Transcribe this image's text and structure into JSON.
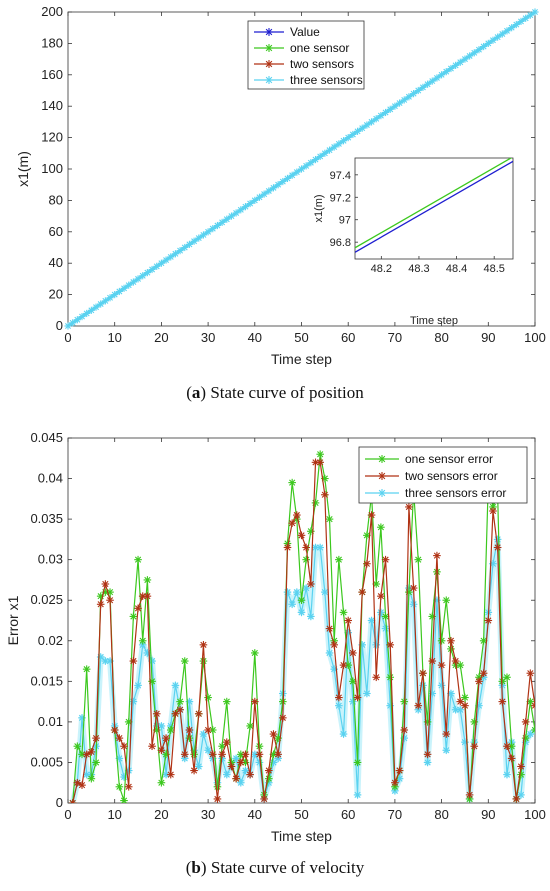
{
  "captions": {
    "a": {
      "letter": "a",
      "text": "State curve of position"
    },
    "b": {
      "letter": "b",
      "text": "State curve of velocity"
    }
  },
  "chart_data": [
    {
      "type": "line",
      "xlabel": "Time step",
      "ylabel": "x1(m)",
      "xlim": [
        0,
        100
      ],
      "ylim": [
        0,
        200
      ],
      "xticks": [
        0,
        10,
        20,
        30,
        40,
        50,
        60,
        70,
        80,
        90,
        100
      ],
      "yticks": [
        0,
        20,
        40,
        60,
        80,
        100,
        120,
        140,
        160,
        180,
        200
      ],
      "legend_position": "top-center",
      "series": [
        {
          "name": "Value",
          "color": "#1f1fd0",
          "marker": "*",
          "x": [
            0,
            100
          ],
          "y": [
            0,
            200
          ]
        },
        {
          "name": "one sensor",
          "color": "#3cc81e",
          "marker": "*",
          "x": [
            0,
            100
          ],
          "y": [
            0,
            200
          ]
        },
        {
          "name": "two sensors",
          "color": "#b03214",
          "marker": "*",
          "x": [
            0,
            100
          ],
          "y": [
            0,
            200
          ]
        },
        {
          "name": "three sensors",
          "color": "#5ad2f0",
          "marker": "*",
          "x": [
            0,
            100
          ],
          "y": [
            0,
            200
          ]
        }
      ],
      "inset": {
        "xlabel": "Time step",
        "ylabel": "x1(m)",
        "xlim": [
          48.13,
          48.55
        ],
        "ylim": [
          96.65,
          97.55
        ],
        "xticks": [
          48.2,
          48.3,
          48.4,
          48.5
        ],
        "yticks": [
          96.8,
          97,
          97.2,
          97.4
        ],
        "ytick_labels": [
          "96.8",
          "97",
          "97.2",
          "97.4"
        ],
        "series": [
          {
            "color": "#1f1fd0",
            "x": [
              48.13,
              48.55
            ],
            "y": [
              96.71,
              97.52
            ]
          },
          {
            "color": "#3cc81e",
            "x": [
              48.13,
              48.55
            ],
            "y": [
              96.75,
              97.56
            ]
          }
        ]
      }
    },
    {
      "type": "line",
      "xlabel": "Time step",
      "ylabel": "Error x1",
      "xlim": [
        0,
        100
      ],
      "ylim": [
        0,
        0.045
      ],
      "xticks": [
        0,
        10,
        20,
        30,
        40,
        50,
        60,
        70,
        80,
        90,
        100
      ],
      "yticks": [
        0,
        0.005,
        0.01,
        0.015,
        0.02,
        0.025,
        0.03,
        0.035,
        0.04,
        0.045
      ],
      "ytick_labels": [
        "0",
        "0.005",
        "0.01",
        "0.015",
        "0.02",
        "0.025",
        "0.03",
        "0.035",
        "0.04",
        "0.045"
      ],
      "legend_position": "top-right",
      "x": [
        1,
        2,
        3,
        4,
        5,
        6,
        7,
        8,
        9,
        10,
        11,
        12,
        13,
        14,
        15,
        16,
        17,
        18,
        19,
        20,
        21,
        22,
        23,
        24,
        25,
        26,
        27,
        28,
        29,
        30,
        31,
        32,
        33,
        34,
        35,
        36,
        37,
        38,
        39,
        40,
        41,
        42,
        43,
        44,
        45,
        46,
        47,
        48,
        49,
        50,
        51,
        52,
        53,
        54,
        55,
        56,
        57,
        58,
        59,
        60,
        61,
        62,
        63,
        64,
        65,
        66,
        67,
        68,
        69,
        70,
        71,
        72,
        73,
        74,
        75,
        76,
        77,
        78,
        79,
        80,
        81,
        82,
        83,
        84,
        85,
        86,
        87,
        88,
        89,
        90,
        91,
        92,
        93,
        94,
        95,
        96,
        97,
        98,
        99,
        100
      ],
      "series": [
        {
          "name": "one sensor error",
          "color": "#3cc81e",
          "values": [
            0,
            0.007,
            0.006,
            0.0165,
            0.003,
            0.005,
            0.0255,
            0.026,
            0.026,
            0.009,
            0.002,
            0.0003,
            0.01,
            0.023,
            0.03,
            0.02,
            0.0275,
            0.015,
            0.009,
            0.0025,
            0.006,
            0.009,
            0.011,
            0.0125,
            0.0175,
            0.008,
            0.006,
            0.011,
            0.0175,
            0.013,
            0.009,
            0.002,
            0.007,
            0.0125,
            0.005,
            0.003,
            0.006,
            0.005,
            0.0095,
            0.0185,
            0.007,
            0.001,
            0.003,
            0.006,
            0.008,
            0.0125,
            0.032,
            0.0395,
            0.035,
            0.025,
            0.03,
            0.0335,
            0.037,
            0.043,
            0.04,
            0.035,
            0.02,
            0.03,
            0.0235,
            0.017,
            0.015,
            0.005,
            0.026,
            0.033,
            0.038,
            0.027,
            0.034,
            0.023,
            0.0155,
            0.002,
            0.004,
            0.0125,
            0.026,
            0.0385,
            0.03,
            0.016,
            0.01,
            0.023,
            0.0285,
            0.02,
            0.025,
            0.019,
            0.017,
            0.017,
            0.013,
            0.0005,
            0.01,
            0.0155,
            0.02,
            0.0395,
            0.0365,
            0.038,
            0.015,
            0.0155,
            0.007,
            0.0005,
            0.0035,
            0.008,
            0.0125,
            0.009
          ]
        },
        {
          "name": "two sensors error",
          "color": "#b03214",
          "values": [
            0,
            0.0025,
            0.0022,
            0.006,
            0.0063,
            0.008,
            0.0245,
            0.027,
            0.025,
            0.009,
            0.008,
            0.007,
            0.002,
            0.0175,
            0.024,
            0.0255,
            0.0255,
            0.007,
            0.011,
            0.0065,
            0.008,
            0.0035,
            0.011,
            0.0115,
            0.006,
            0.009,
            0.004,
            0.011,
            0.0195,
            0.009,
            0.006,
            0.0005,
            0.006,
            0.0075,
            0.0045,
            0.003,
            0.005,
            0.006,
            0.0035,
            0.0125,
            0.006,
            0.0005,
            0.004,
            0.0085,
            0.006,
            0.0105,
            0.0315,
            0.0345,
            0.0355,
            0.033,
            0.0315,
            0.027,
            0.042,
            0.042,
            0.038,
            0.0215,
            0.0195,
            0.013,
            0.017,
            0.0225,
            0.0185,
            0.013,
            0.026,
            0.0295,
            0.0355,
            0.0155,
            0.0255,
            0.03,
            0.0195,
            0.0025,
            0.004,
            0.009,
            0.0365,
            0.0265,
            0.012,
            0.016,
            0.006,
            0.0175,
            0.0305,
            0.017,
            0.0085,
            0.02,
            0.0175,
            0.0125,
            0.012,
            0.001,
            0.007,
            0.015,
            0.016,
            0.0225,
            0.036,
            0.0315,
            0.0125,
            0.007,
            0.0055,
            0.0005,
            0.0045,
            0.01,
            0.016,
            0.012
          ]
        },
        {
          "name": "three sensors error",
          "color": "#5ad2f0",
          "values": [
            0,
            0.0025,
            0.0105,
            0.0035,
            0.0035,
            0.007,
            0.018,
            0.0175,
            0.0175,
            0.0095,
            0.0055,
            0.0032,
            0.004,
            0.0125,
            0.0145,
            0.0195,
            0.0185,
            0.0175,
            0.0095,
            0.0095,
            0.0035,
            0.0095,
            0.0145,
            0.0115,
            0.0055,
            0.0125,
            0.0065,
            0.0045,
            0.0085,
            0.0065,
            0.0055,
            0.0025,
            0.0055,
            0.0035,
            0.0045,
            0.0055,
            0.0025,
            0.004,
            0.0035,
            0.006,
            0.005,
            0.0005,
            0.0025,
            0.005,
            0.0055,
            0.0135,
            0.026,
            0.0245,
            0.026,
            0.0235,
            0.0265,
            0.023,
            0.0315,
            0.0315,
            0.026,
            0.0185,
            0.0165,
            0.012,
            0.0085,
            0.021,
            0.0125,
            0.001,
            0.0195,
            0.0135,
            0.0225,
            0.0195,
            0.0235,
            0.0215,
            0.012,
            0.0015,
            0.003,
            0.008,
            0.0265,
            0.0245,
            0.0115,
            0.0145,
            0.005,
            0.0135,
            0.025,
            0.0145,
            0.0065,
            0.0135,
            0.0115,
            0.0115,
            0.0075,
            0.0005,
            0.0075,
            0.012,
            0.0155,
            0.0235,
            0.0295,
            0.0325,
            0.0145,
            0.0035,
            0.0075,
            0.0005,
            0.001,
            0.0075,
            0.0085,
            0.009
          ]
        }
      ]
    }
  ]
}
